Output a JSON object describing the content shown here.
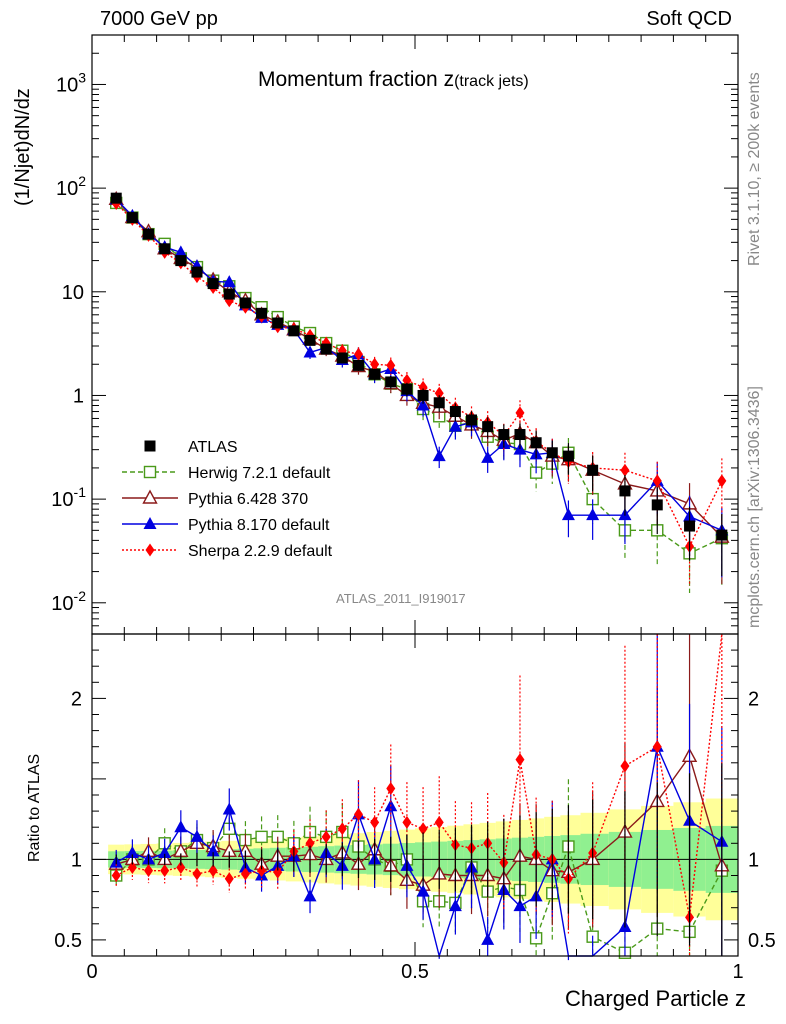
{
  "header": {
    "left": "7000 GeV pp",
    "right": "Soft QCD"
  },
  "side_labels": {
    "rivet": "Rivet 3.1.10, ≥ 200k events",
    "mcplots": "mcplots.cern.ch [arXiv:1306.3436]"
  },
  "chart_data": {
    "type": "line",
    "title": "Momentum fraction z",
    "title_sub": "(track jets)",
    "xlabel": "Charged Particle z",
    "ylabel": "(1/Njet)dN/dz",
    "ratio_ylabel": "Ratio to ATLAS",
    "analysis_ref": "ATLAS_2011_I919017",
    "xlim": [
      0,
      1
    ],
    "ylim": [
      0.005,
      3000
    ],
    "ratio_ylim": [
      0.4,
      2.4
    ],
    "x_ticks": [
      "0",
      "0.5",
      "1"
    ],
    "x_tick_values": [
      0,
      0.5,
      1
    ],
    "y_ticks": [
      "10^-2",
      "10^-1",
      "1",
      "10",
      "10^2",
      "10^3"
    ],
    "y_tick_values": [
      0.01,
      0.1,
      1,
      10,
      100,
      1000
    ],
    "ratio_ticks": [
      "0.5",
      "1",
      "2"
    ],
    "ratio_tick_values": [
      0.5,
      1,
      2
    ],
    "x": [
      0.0375,
      0.0625,
      0.0875,
      0.1125,
      0.1375,
      0.1625,
      0.1875,
      0.2125,
      0.2375,
      0.2625,
      0.2875,
      0.3125,
      0.3375,
      0.3625,
      0.3875,
      0.4125,
      0.4375,
      0.4625,
      0.4875,
      0.5125,
      0.5375,
      0.5625,
      0.5875,
      0.6125,
      0.6375,
      0.6625,
      0.6875,
      0.7125,
      0.7375,
      0.775,
      0.825,
      0.875,
      0.925,
      0.975
    ],
    "series": [
      {
        "name": "ATLAS",
        "color": "#000000",
        "marker": "square",
        "values": [
          80,
          52,
          36,
          26,
          20,
          15.5,
          12,
          9.5,
          7.8,
          6.2,
          5.0,
          4.2,
          3.4,
          2.8,
          2.3,
          1.95,
          1.6,
          1.35,
          1.15,
          1.0,
          0.85,
          0.7,
          0.58,
          0.5,
          0.42,
          0.42,
          0.35,
          0.28,
          0.26,
          0.19,
          0.12,
          0.088,
          0.055,
          0.045
        ],
        "ratio": [
          1,
          1,
          1,
          1,
          1,
          1,
          1,
          1,
          1,
          1,
          1,
          1,
          1,
          1,
          1,
          1,
          1,
          1,
          1,
          1,
          1,
          1,
          1,
          1,
          1,
          1,
          1,
          1,
          1,
          1,
          1,
          1,
          1,
          1
        ]
      },
      {
        "name": "Herwig 7.2.1 default",
        "color": "#4a9a1a",
        "marker": "open-square",
        "values": [
          72,
          52,
          36,
          29,
          21,
          17.3,
          12.8,
          11.3,
          8.7,
          7.1,
          5.7,
          4.6,
          4.0,
          3.2,
          2.7,
          2.1,
          1.6,
          1.3,
          1.15,
          0.74,
          0.63,
          0.51,
          0.55,
          0.4,
          0.35,
          0.34,
          0.18,
          0.22,
          0.28,
          0.1,
          0.05,
          0.05,
          0.03,
          0.042
        ],
        "ratio": [
          0.9,
          1.0,
          1.0,
          1.1,
          1.05,
          1.12,
          1.07,
          1.19,
          1.12,
          1.14,
          1.14,
          1.1,
          1.17,
          1.14,
          1.17,
          1.08,
          1.0,
          0.96,
          1.0,
          0.74,
          0.74,
          0.73,
          0.95,
          0.8,
          0.83,
          0.81,
          0.51,
          0.79,
          1.08,
          0.52,
          0.42,
          0.57,
          0.55,
          0.93
        ]
      },
      {
        "name": "Pythia 6.428 370",
        "color": "#8b1a1a",
        "marker": "open-triangle",
        "values": [
          78,
          52,
          38,
          26,
          21,
          17,
          13,
          10,
          8.2,
          6.0,
          5.1,
          4.3,
          3.5,
          2.8,
          2.4,
          1.9,
          1.7,
          1.3,
          1.0,
          0.84,
          0.77,
          0.63,
          0.52,
          0.45,
          0.37,
          0.43,
          0.35,
          0.26,
          0.24,
          0.19,
          0.14,
          0.12,
          0.09,
          0.043
        ],
        "ratio": [
          0.97,
          1.0,
          1.05,
          1.0,
          1.05,
          1.1,
          1.08,
          1.05,
          1.05,
          0.97,
          1.02,
          1.02,
          1.03,
          1.0,
          1.04,
          0.97,
          1.06,
          0.96,
          0.87,
          0.84,
          0.91,
          0.9,
          0.9,
          0.9,
          0.88,
          1.02,
          1.0,
          0.93,
          0.92,
          1.0,
          1.17,
          1.36,
          1.64,
          0.96
        ]
      },
      {
        "name": "Pythia 8.170 default",
        "color": "#0000e0",
        "marker": "triangle",
        "values": [
          78,
          54,
          36,
          27,
          24,
          17.7,
          12.6,
          12.4,
          7.4,
          5.6,
          4.8,
          4.3,
          2.6,
          2.9,
          2.2,
          2.5,
          1.6,
          1.8,
          1.1,
          0.8,
          0.26,
          0.5,
          0.55,
          0.25,
          0.34,
          0.3,
          0.27,
          0.28,
          0.07,
          0.07,
          0.07,
          0.15,
          0.068,
          0.05
        ],
        "ratio": [
          0.98,
          1.04,
          1.0,
          1.04,
          1.2,
          1.14,
          1.05,
          1.31,
          0.95,
          0.9,
          0.96,
          1.02,
          0.77,
          1.04,
          0.96,
          1.28,
          1.0,
          1.33,
          0.96,
          0.8,
          0.31,
          0.71,
          0.95,
          0.5,
          0.81,
          0.71,
          0.77,
          1.0,
          0.27,
          0.37,
          0.58,
          1.7,
          1.24,
          1.11
        ]
      },
      {
        "name": "Sherpa 2.2.9 default",
        "color": "#ff0000",
        "marker": "diamond",
        "values": [
          71,
          50,
          35,
          24,
          19,
          14,
          11,
          8.2,
          7.1,
          5.8,
          4.6,
          4.4,
          3.8,
          3.2,
          2.7,
          2.5,
          2.0,
          1.95,
          1.4,
          1.2,
          1.05,
          0.76,
          0.62,
          0.55,
          0.41,
          0.68,
          0.36,
          0.28,
          0.23,
          0.2,
          0.19,
          0.15,
          0.035,
          0.15
        ],
        "ratio": [
          0.9,
          0.95,
          0.93,
          0.93,
          0.95,
          0.91,
          0.93,
          0.88,
          0.91,
          0.93,
          0.92,
          1.05,
          1.1,
          1.14,
          1.19,
          1.28,
          1.23,
          1.44,
          1.23,
          1.19,
          1.23,
          1.09,
          1.07,
          1.1,
          0.98,
          1.62,
          1.03,
          1.0,
          0.88,
          1.04,
          1.58,
          1.7,
          0.64,
          3.3
        ]
      }
    ]
  }
}
